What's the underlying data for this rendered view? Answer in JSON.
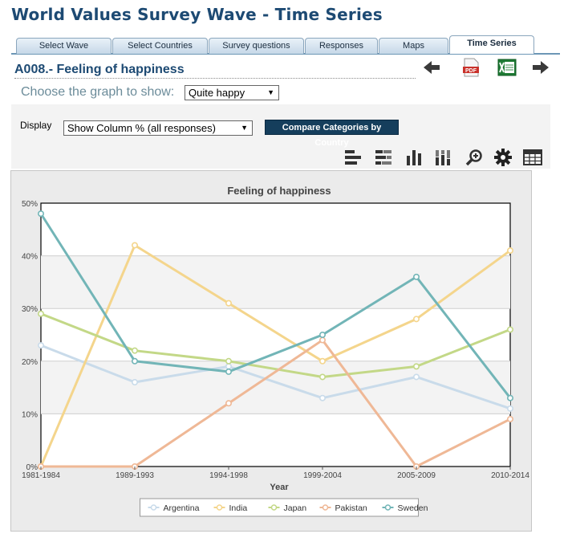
{
  "app_title": "World Values Survey Wave - Time Series",
  "tabs": [
    "Select Wave",
    "Select Countries",
    "Survey questions",
    "Responses",
    "Maps",
    "Time Series"
  ],
  "question_title": "A008.- Feeling of happiness",
  "choose_label": "Choose the graph to show:",
  "choose_value": "Quite happy",
  "display_label": "Display",
  "display_value": "Show Column % (all responses)",
  "compare_button": "Compare Categories by Country",
  "icons": {
    "prev": "arrow-left-icon",
    "pdf": "pdf-icon",
    "pdf_label": "PDF",
    "excel": "excel-icon",
    "next": "arrow-right-icon",
    "tools": [
      "bar-horizontal-icon",
      "bar-stacked-horizontal-icon",
      "bar-vertical-icon",
      "bar-stacked-vertical-icon",
      "zoom-icon",
      "gear-icon",
      "table-icon"
    ]
  },
  "chart_data": {
    "type": "line",
    "title": "Feeling of happiness",
    "xlabel": "Year",
    "ylabel": "",
    "categories": [
      "1981-1984",
      "1989-1993",
      "1994-1998",
      "1999-2004",
      "2005-2009",
      "2010-2014"
    ],
    "y_ticks": [
      "0%",
      "10%",
      "20%",
      "30%",
      "40%",
      "50%"
    ],
    "ylim": [
      0,
      50
    ],
    "grid": true,
    "legend_position": "bottom",
    "series": [
      {
        "name": "Argentina",
        "color": "#c9dbea",
        "values": [
          23,
          16,
          19,
          13,
          17,
          11
        ]
      },
      {
        "name": "India",
        "color": "#f4d58c",
        "values": [
          0,
          42,
          31,
          20,
          28,
          41
        ]
      },
      {
        "name": "Japan",
        "color": "#c3d887",
        "values": [
          29,
          22,
          20,
          17,
          19,
          26
        ]
      },
      {
        "name": "Pakistan",
        "color": "#efb896",
        "values": [
          0,
          0,
          12,
          24,
          0,
          9
        ]
      },
      {
        "name": "Sweden",
        "color": "#72b5b7",
        "values": [
          48,
          20,
          18,
          25,
          36,
          13
        ]
      }
    ]
  }
}
